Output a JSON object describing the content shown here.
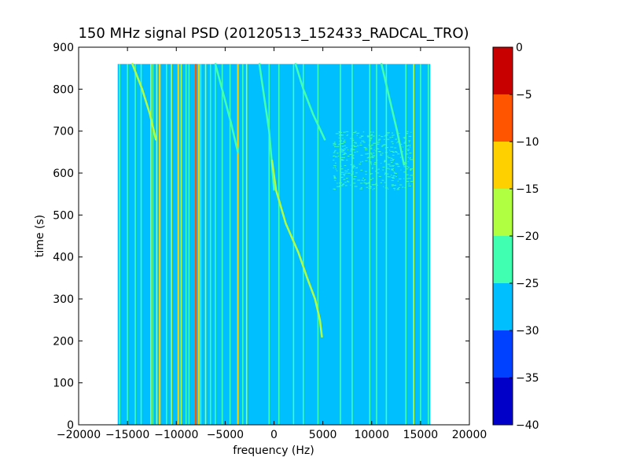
{
  "chart_data": {
    "type": "heatmap",
    "title": "150 MHz signal PSD (20120513_152433_RADCAL_TRO)",
    "xlabel": "frequency (Hz)",
    "ylabel": "time (s)",
    "xlim": [
      -20000,
      20000
    ],
    "ylim": [
      0,
      900
    ],
    "xticks": [
      -20000,
      -15000,
      -10000,
      -5000,
      0,
      5000,
      10000,
      15000,
      20000
    ],
    "xtick_labels": [
      "−20000",
      "−15000",
      "−10000",
      "−5000",
      "0",
      "5000",
      "10000",
      "15000",
      "20000"
    ],
    "yticks": [
      0,
      100,
      200,
      300,
      400,
      500,
      600,
      700,
      800,
      900
    ],
    "ytick_labels": [
      "0",
      "100",
      "200",
      "300",
      "400",
      "500",
      "600",
      "700",
      "800",
      "900"
    ],
    "data_extent": {
      "x": [
        -16000,
        16000
      ],
      "y": [
        0,
        860
      ]
    },
    "background_level": -27.5,
    "colorbar": {
      "levels": [
        -40,
        -35,
        -30,
        -25,
        -20,
        -15,
        -10,
        -5,
        0
      ],
      "tick_labels": [
        "−40",
        "−35",
        "−30",
        "−25",
        "−20",
        "−15",
        "−10",
        "−5",
        "0"
      ],
      "colors": [
        "#0000c8",
        "#0040ff",
        "#00bfff",
        "#40ffb0",
        "#b0ff40",
        "#ffd000",
        "#ff5500",
        "#c80000"
      ]
    },
    "vertical_lines": [
      {
        "x": -15800,
        "level": -22.5
      },
      {
        "x": -15000,
        "level": -22.5
      },
      {
        "x": -14200,
        "level": -22.5
      },
      {
        "x": -13600,
        "level": -22.5
      },
      {
        "x": -12600,
        "level": -17.5
      },
      {
        "x": -12400,
        "level": -22.5
      },
      {
        "x": -12000,
        "level": -17.5
      },
      {
        "x": -11700,
        "level": -12.5
      },
      {
        "x": -11000,
        "level": -22.5
      },
      {
        "x": -10500,
        "level": -17.5
      },
      {
        "x": -9800,
        "level": -12.5
      },
      {
        "x": -9500,
        "level": -17.5
      },
      {
        "x": -9000,
        "level": -22.5
      },
      {
        "x": -8700,
        "level": -22.5
      },
      {
        "x": -8000,
        "level": -7.5
      },
      {
        "x": -7700,
        "level": -12.5
      },
      {
        "x": -7500,
        "level": -22.5
      },
      {
        "x": -7000,
        "level": -17.5
      },
      {
        "x": -6500,
        "level": -22.5
      },
      {
        "x": -6000,
        "level": -22.5
      },
      {
        "x": -5300,
        "level": -22.5
      },
      {
        "x": -4500,
        "level": -22.5
      },
      {
        "x": -3700,
        "level": -12.5
      },
      {
        "x": -3200,
        "level": -22.5
      },
      {
        "x": -2800,
        "level": -17.5
      },
      {
        "x": -500,
        "level": -22.5
      },
      {
        "x": 500,
        "level": -22.5
      },
      {
        "x": 2000,
        "level": -22.5
      },
      {
        "x": 3000,
        "level": -22.5
      },
      {
        "x": 4500,
        "level": -22.5
      },
      {
        "x": 6800,
        "level": -22.5
      },
      {
        "x": 8000,
        "level": -22.5
      },
      {
        "x": 9800,
        "level": -22.5
      },
      {
        "x": 10500,
        "level": -22.5
      },
      {
        "x": 11500,
        "level": -22.5
      },
      {
        "x": 13500,
        "level": -22.5
      },
      {
        "x": 14300,
        "level": -17.5
      },
      {
        "x": 15000,
        "level": -22.5
      },
      {
        "x": 15800,
        "level": -22.5
      }
    ],
    "drift_tracks": [
      {
        "level": -17.5,
        "points": [
          [
            -14500,
            860
          ],
          [
            -13500,
            800
          ],
          [
            -12700,
            740
          ],
          [
            -12100,
            680
          ]
        ]
      },
      {
        "level": -22.5,
        "points": [
          [
            -6000,
            860
          ],
          [
            -5200,
            790
          ],
          [
            -4400,
            720
          ],
          [
            -3700,
            650
          ]
        ]
      },
      {
        "level": -22.5,
        "points": [
          [
            -1500,
            860
          ],
          [
            -1000,
            780
          ],
          [
            -500,
            700
          ],
          [
            -200,
            620
          ],
          [
            0,
            560
          ]
        ]
      },
      {
        "level": -17.5,
        "points": [
          [
            -200,
            630
          ],
          [
            200,
            560
          ],
          [
            1200,
            480
          ],
          [
            2500,
            410
          ],
          [
            3400,
            350
          ],
          [
            4200,
            300
          ],
          [
            4700,
            250
          ],
          [
            4900,
            210
          ]
        ]
      },
      {
        "level": -22.5,
        "points": [
          [
            2200,
            860
          ],
          [
            3000,
            800
          ],
          [
            4000,
            740
          ],
          [
            5200,
            680
          ]
        ]
      },
      {
        "level": -22.5,
        "points": [
          [
            11000,
            860
          ],
          [
            11800,
            780
          ],
          [
            12600,
            700
          ],
          [
            13300,
            620
          ]
        ]
      }
    ],
    "scatter_regions": [
      {
        "x": [
          6000,
          14000
        ],
        "y": [
          560,
          700
        ],
        "level": -22.5
      }
    ]
  }
}
